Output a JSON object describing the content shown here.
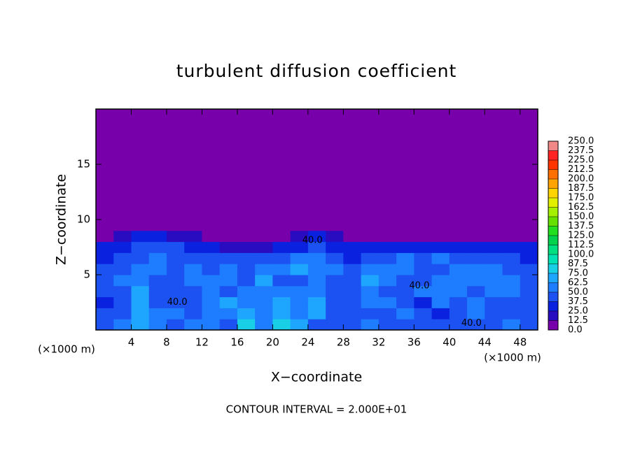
{
  "chart_data": {
    "type": "contour",
    "title": "turbulent diffusion coefficient",
    "xlabel": "X−coordinate",
    "ylabel": "Z−coordinate",
    "x_unit": "(×1000 m)",
    "y_unit": "(×1000 m)",
    "footnote": "CONTOUR INTERVAL = 2.000E+01",
    "xlim": [
      0,
      50
    ],
    "ylim": [
      0,
      20
    ],
    "xticks": [
      4,
      8,
      12,
      16,
      20,
      24,
      28,
      32,
      36,
      40,
      44,
      48
    ],
    "yticks": [
      5,
      10,
      15
    ],
    "x_edges": [
      0,
      2,
      4,
      6,
      8,
      10,
      12,
      14,
      16,
      18,
      20,
      22,
      24,
      26,
      28,
      30,
      32,
      34,
      36,
      38,
      40,
      42,
      44,
      46,
      48,
      50
    ],
    "y_edges": [
      0,
      1,
      2,
      3,
      4,
      5,
      6,
      7,
      8,
      9,
      10,
      20
    ],
    "z": [
      [
        45,
        50,
        70,
        55,
        45,
        55,
        50,
        45,
        80,
        60,
        85,
        70,
        45,
        40,
        45,
        50,
        40,
        45,
        40,
        40,
        45,
        45,
        40,
        50,
        40
      ],
      [
        40,
        45,
        65,
        50,
        60,
        45,
        55,
        60,
        70,
        55,
        70,
        60,
        65,
        45,
        40,
        45,
        45,
        55,
        40,
        35,
        40,
        50,
        45,
        45,
        40
      ],
      [
        35,
        40,
        70,
        45,
        45,
        40,
        50,
        65,
        60,
        50,
        65,
        55,
        70,
        45,
        40,
        55,
        50,
        40,
        35,
        50,
        45,
        55,
        40,
        40,
        45
      ],
      [
        40,
        45,
        65,
        40,
        40,
        45,
        60,
        45,
        55,
        60,
        55,
        50,
        60,
        45,
        45,
        60,
        45,
        40,
        50,
        60,
        50,
        45,
        55,
        50,
        40
      ],
      [
        45,
        50,
        60,
        45,
        40,
        55,
        55,
        50,
        45,
        65,
        45,
        45,
        55,
        40,
        45,
        65,
        55,
        45,
        45,
        55,
        60,
        50,
        60,
        55,
        45
      ],
      [
        40,
        45,
        55,
        50,
        45,
        50,
        45,
        55,
        45,
        50,
        55,
        65,
        60,
        50,
        45,
        50,
        60,
        50,
        40,
        45,
        50,
        55,
        55,
        40,
        45
      ],
      [
        35,
        40,
        45,
        50,
        45,
        40,
        40,
        45,
        40,
        40,
        45,
        50,
        55,
        40,
        35,
        40,
        45,
        50,
        45,
        50,
        45,
        40,
        40,
        45,
        35
      ],
      [
        30,
        35,
        40,
        45,
        40,
        35,
        30,
        20,
        20,
        15,
        30,
        35,
        40,
        35,
        30,
        25,
        25,
        30,
        30,
        25,
        30,
        30,
        25,
        30,
        30
      ],
      [
        10,
        20,
        25,
        25,
        20,
        15,
        5,
        0,
        0,
        0,
        0,
        20,
        25,
        15,
        5,
        0,
        0,
        0,
        0,
        0,
        0,
        0,
        0,
        0,
        0
      ],
      [
        0,
        0,
        0,
        0,
        0,
        0,
        0,
        0,
        0,
        0,
        0,
        0,
        0,
        0,
        0,
        0,
        0,
        0,
        0,
        0,
        0,
        0,
        0,
        0,
        0
      ],
      [
        0,
        0,
        0,
        0,
        0,
        0,
        0,
        0,
        0,
        0,
        0,
        0,
        0,
        0,
        0,
        0,
        0,
        0,
        0,
        0,
        0,
        0,
        0,
        0,
        0
      ]
    ],
    "levels": [
      {
        "value": 0,
        "label": "0.0"
      },
      {
        "value": 12.5,
        "label": "12.5"
      },
      {
        "value": 25,
        "label": "25.0"
      },
      {
        "value": 37.5,
        "label": "37.5"
      },
      {
        "value": 50,
        "label": "50.0"
      },
      {
        "value": 62.5,
        "label": "62.5"
      },
      {
        "value": 75,
        "label": "75.0"
      },
      {
        "value": 87.5,
        "label": "87.5"
      },
      {
        "value": 100,
        "label": "100.0"
      },
      {
        "value": 112.5,
        "label": "112.5"
      },
      {
        "value": 125,
        "label": "125.0"
      },
      {
        "value": 137.5,
        "label": "137.5"
      },
      {
        "value": 150,
        "label": "150.0"
      },
      {
        "value": 162.5,
        "label": "162.5"
      },
      {
        "value": 175,
        "label": "175.0"
      },
      {
        "value": 187.5,
        "label": "187.5"
      },
      {
        "value": 200,
        "label": "200.0"
      },
      {
        "value": 212.5,
        "label": "212.5"
      },
      {
        "value": 225,
        "label": "225.0"
      },
      {
        "value": 237.5,
        "label": "237.5"
      },
      {
        "value": 250,
        "label": "250.0"
      }
    ],
    "colors": [
      "#7800aa",
      "#2a0cc0",
      "#0a22e0",
      "#1c52f2",
      "#1e7cff",
      "#1ea6ff",
      "#18cfe6",
      "#00e2b4",
      "#00e080",
      "#00d24e",
      "#22e020",
      "#66e000",
      "#a4f000",
      "#e2f000",
      "#ffd400",
      "#ffa400",
      "#ff7000",
      "#ff3400",
      "#ff2424",
      "#f08888"
    ],
    "annotations": [
      {
        "text": "40.0",
        "x": 24.5,
        "y": 8.1
      },
      {
        "text": "40.0",
        "x": 36.6,
        "y": 4.0
      },
      {
        "text": "40.0",
        "x": 9.2,
        "y": 2.5
      },
      {
        "text": "40.0",
        "x": 42.5,
        "y": 0.6
      }
    ]
  }
}
